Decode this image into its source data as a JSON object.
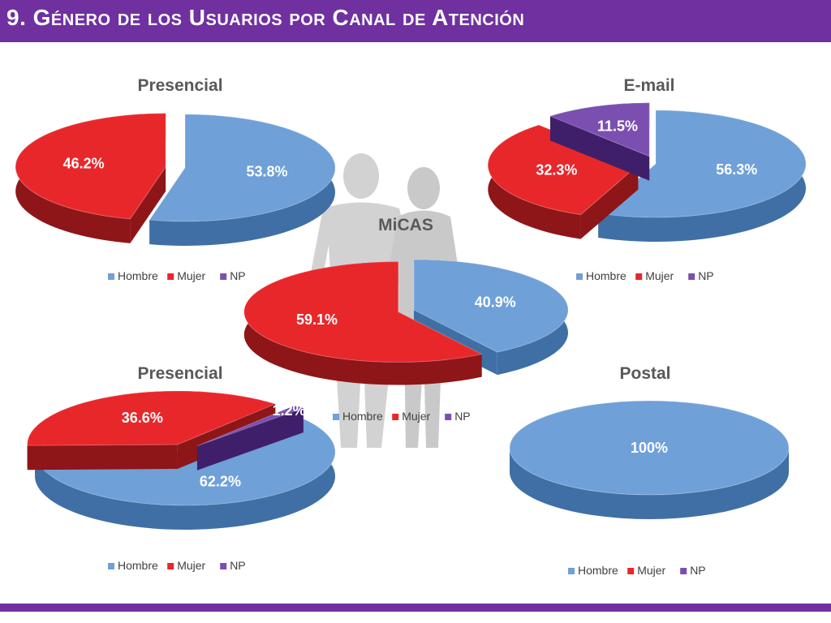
{
  "header": {
    "title": "9. Género de los Usuarios por Canal de Atención"
  },
  "colors": {
    "header_bg": "#7030a0",
    "hombre": "#6fa0d8",
    "mujer": "#e8272b",
    "np": "#7a4fb0",
    "silhouette": "#d0d0d0"
  },
  "legend_labels": [
    "Hombre",
    "Mujer",
    "NP"
  ],
  "chart_data": [
    {
      "type": "pie",
      "title": "Presencial",
      "categories": [
        "Hombre",
        "Mujer",
        "NP"
      ],
      "values": [
        53.8,
        46.2,
        0
      ],
      "data_labels": [
        "53.8%",
        "46.2%",
        ""
      ],
      "legend": "bottom"
    },
    {
      "type": "pie",
      "title": "E-mail",
      "categories": [
        "Hombre",
        "Mujer",
        "NP"
      ],
      "values": [
        56.3,
        32.3,
        11.5
      ],
      "data_labels": [
        "56.3%",
        "32.3%",
        "11.5%"
      ],
      "legend": "bottom"
    },
    {
      "type": "pie",
      "title": "MiCAS",
      "categories": [
        "Hombre",
        "Mujer",
        "NP"
      ],
      "values": [
        40.9,
        59.1,
        0
      ],
      "data_labels": [
        "40.9%",
        "59.1%",
        ""
      ],
      "legend": "bottom"
    },
    {
      "type": "pie",
      "title": "Presencial",
      "categories": [
        "Hombre",
        "Mujer",
        "NP"
      ],
      "values": [
        62.2,
        36.6,
        1.2
      ],
      "data_labels": [
        "62.2%",
        "36.6%",
        "1.2%"
      ],
      "legend": "bottom"
    },
    {
      "type": "pie",
      "title": "Postal",
      "categories": [
        "Hombre",
        "Mujer",
        "NP"
      ],
      "values": [
        100,
        0,
        0
      ],
      "data_labels": [
        "100%",
        "",
        ""
      ],
      "legend": "bottom"
    }
  ]
}
